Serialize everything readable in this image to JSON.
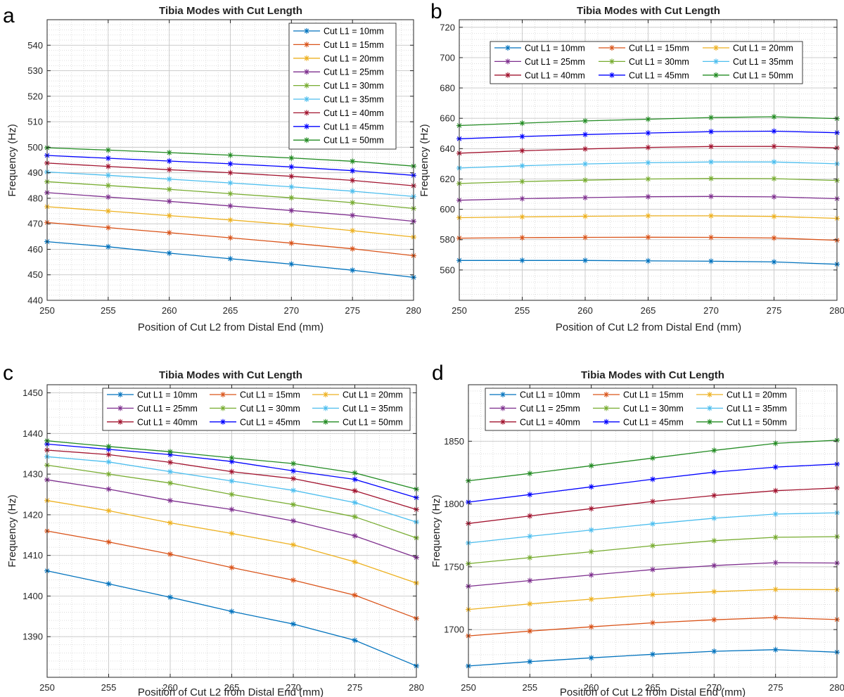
{
  "chart_data": [
    {
      "panel": "a",
      "type": "line",
      "title": "Tibia Modes with Cut Length",
      "xlabel": "Position of Cut L2 from Distal End (mm)",
      "ylabel": "Frequency (Hz)",
      "x": [
        250,
        255,
        260,
        265,
        270,
        275,
        280
      ],
      "xlim": [
        250,
        280
      ],
      "ylim": [
        440,
        550
      ],
      "xticks": [
        250,
        255,
        260,
        265,
        270,
        275,
        280
      ],
      "yticks": [
        440,
        450,
        460,
        470,
        480,
        490,
        500,
        510,
        520,
        530,
        540
      ],
      "grid": true,
      "legend": {
        "placement": "top-right",
        "columns": 1
      },
      "series": [
        {
          "name": "Cut L1 = 10mm",
          "color": "#0072BD",
          "values": [
            463,
            461,
            458.5,
            456.3,
            454.2,
            451.8,
            449
          ]
        },
        {
          "name": "Cut L1 = 15mm",
          "color": "#D95319",
          "values": [
            470.5,
            468.5,
            466.5,
            464.5,
            462.4,
            460.2,
            457.5
          ]
        },
        {
          "name": "Cut L1 = 20mm",
          "color": "#EDB120",
          "values": [
            476.7,
            475,
            473.2,
            471.5,
            469.6,
            467.3,
            464.8
          ]
        },
        {
          "name": "Cut L1 = 25mm",
          "color": "#7E2F8E",
          "values": [
            482.2,
            480.5,
            478.8,
            477,
            475.2,
            473.3,
            471
          ]
        },
        {
          "name": "Cut L1 = 30mm",
          "color": "#77AC30",
          "values": [
            486.5,
            485,
            483.5,
            481.8,
            480.2,
            478.3,
            476
          ]
        },
        {
          "name": "Cut L1 = 35mm",
          "color": "#4DBEEE",
          "values": [
            490.3,
            489,
            487.5,
            486,
            484.5,
            482.8,
            480.7
          ]
        },
        {
          "name": "Cut L1 = 40mm",
          "color": "#A2142F",
          "values": [
            493.8,
            492.5,
            491.2,
            490,
            488.6,
            487,
            484.9
          ]
        },
        {
          "name": "Cut L1 = 45mm",
          "color": "#0000FF",
          "values": [
            496.8,
            495.7,
            494.6,
            493.5,
            492.3,
            490.8,
            489
          ]
        },
        {
          "name": "Cut L1 = 50mm",
          "color": "#228B22",
          "values": [
            499.8,
            498.9,
            497.9,
            496.9,
            495.8,
            494.5,
            492.6
          ]
        }
      ]
    },
    {
      "panel": "b",
      "type": "line",
      "title": "Tibia Modes with Cut Length",
      "xlabel": "Position of Cut L2 from Distal End (mm)",
      "ylabel": "Frequency (Hz)",
      "x": [
        250,
        255,
        260,
        265,
        270,
        275,
        280
      ],
      "xlim": [
        250,
        280
      ],
      "ylim": [
        540,
        725
      ],
      "xticks": [
        250,
        255,
        260,
        265,
        270,
        275,
        280
      ],
      "yticks": [
        560,
        580,
        600,
        620,
        640,
        660,
        680,
        700,
        720
      ],
      "grid": true,
      "legend": {
        "placement": "top",
        "columns": 3
      },
      "series": [
        {
          "name": "Cut L1 = 10mm",
          "color": "#0072BD",
          "values": [
            566.3,
            566.3,
            566.3,
            566,
            565.8,
            565.3,
            563.8
          ]
        },
        {
          "name": "Cut L1 = 15mm",
          "color": "#D95319",
          "values": [
            581,
            581.3,
            581.5,
            581.6,
            581.5,
            581.1,
            579.6
          ]
        },
        {
          "name": "Cut L1 = 20mm",
          "color": "#EDB120",
          "values": [
            594.5,
            595,
            595.4,
            595.7,
            595.7,
            595.3,
            594
          ]
        },
        {
          "name": "Cut L1 = 25mm",
          "color": "#7E2F8E",
          "values": [
            606,
            607,
            607.7,
            608.3,
            608.5,
            608.2,
            607
          ]
        },
        {
          "name": "Cut L1 = 30mm",
          "color": "#77AC30",
          "values": [
            617,
            618.3,
            619.2,
            620,
            620.3,
            620.2,
            619
          ]
        },
        {
          "name": "Cut L1 = 35mm",
          "color": "#4DBEEE",
          "values": [
            627.2,
            628.7,
            629.9,
            630.7,
            631.2,
            631.2,
            630
          ]
        },
        {
          "name": "Cut L1 = 40mm",
          "color": "#A2142F",
          "values": [
            637,
            638.6,
            639.8,
            640.8,
            641.4,
            641.5,
            640.5
          ]
        },
        {
          "name": "Cut L1 = 45mm",
          "color": "#0000FF",
          "values": [
            646.5,
            648,
            649.3,
            650.3,
            651.2,
            651.5,
            650.5
          ]
        },
        {
          "name": "Cut L1 = 50mm",
          "color": "#228B22",
          "values": [
            655.2,
            656.8,
            658.3,
            659.4,
            660.5,
            661,
            659.8
          ]
        }
      ]
    },
    {
      "panel": "c",
      "type": "line",
      "title": "Tibia Modes with Cut Length",
      "xlabel": "Position of Cut L2 from Distal End (mm)",
      "ylabel": "Frequency (Hz)",
      "x": [
        250,
        255,
        260,
        265,
        270,
        275,
        280
      ],
      "xlim": [
        250,
        280
      ],
      "ylim": [
        1380,
        1452
      ],
      "xticks": [
        250,
        255,
        260,
        265,
        270,
        275,
        280
      ],
      "yticks": [
        1390,
        1400,
        1410,
        1420,
        1430,
        1440,
        1450
      ],
      "grid": true,
      "legend": {
        "placement": "top",
        "columns": 3
      },
      "series": [
        {
          "name": "Cut L1 = 10mm",
          "color": "#0072BD",
          "values": [
            1406.2,
            1403,
            1399.7,
            1396.2,
            1393.1,
            1389.1,
            1382.8
          ]
        },
        {
          "name": "Cut L1 = 15mm",
          "color": "#D95319",
          "values": [
            1416,
            1413.3,
            1410.3,
            1407,
            1403.9,
            1400.2,
            1394.5
          ]
        },
        {
          "name": "Cut L1 = 20mm",
          "color": "#EDB120",
          "values": [
            1423.5,
            1421,
            1418,
            1415.4,
            1412.6,
            1408.4,
            1403.2
          ]
        },
        {
          "name": "Cut L1 = 25mm",
          "color": "#7E2F8E",
          "values": [
            1428.6,
            1426.3,
            1423.5,
            1421.3,
            1418.5,
            1414.8,
            1409.5
          ]
        },
        {
          "name": "Cut L1 = 30mm",
          "color": "#77AC30",
          "values": [
            1432.2,
            1430,
            1427.8,
            1425,
            1422.5,
            1419.5,
            1414.3
          ]
        },
        {
          "name": "Cut L1 = 35mm",
          "color": "#4DBEEE",
          "values": [
            1434.3,
            1433,
            1430.6,
            1428.3,
            1426,
            1423,
            1418.2
          ]
        },
        {
          "name": "Cut L1 = 40mm",
          "color": "#A2142F",
          "values": [
            1435.9,
            1434.8,
            1432.9,
            1430.6,
            1428.9,
            1425.9,
            1421.3
          ]
        },
        {
          "name": "Cut L1 = 45mm",
          "color": "#0000FF",
          "values": [
            1437.4,
            1436.1,
            1434.8,
            1433.1,
            1430.8,
            1428.7,
            1424.2
          ]
        },
        {
          "name": "Cut L1 = 50mm",
          "color": "#228B22",
          "values": [
            1438.2,
            1436.8,
            1435.5,
            1434,
            1432.6,
            1430.3,
            1426.3
          ]
        }
      ]
    },
    {
      "panel": "d",
      "type": "line",
      "title": "Tibia Modes with Cut Length",
      "xlabel": "Position of Cut L2 from Distal End (mm)",
      "ylabel": "Frequency (Hz)",
      "x": [
        250,
        255,
        260,
        265,
        270,
        275,
        280
      ],
      "xlim": [
        250,
        280
      ],
      "ylim": [
        1662,
        1895
      ],
      "xticks": [
        250,
        255,
        260,
        265,
        270,
        275,
        280
      ],
      "yticks": [
        1700,
        1750,
        1800,
        1850
      ],
      "grid": true,
      "legend": {
        "placement": "top",
        "columns": 3
      },
      "series": [
        {
          "name": "Cut L1 = 10mm",
          "color": "#0072BD",
          "values": [
            1671,
            1674.5,
            1677.5,
            1680.3,
            1682.7,
            1684,
            1682
          ]
        },
        {
          "name": "Cut L1 = 15mm",
          "color": "#D95319",
          "values": [
            1695,
            1698.8,
            1702.2,
            1705.4,
            1707.8,
            1709.6,
            1708
          ]
        },
        {
          "name": "Cut L1 = 20mm",
          "color": "#EDB120",
          "values": [
            1716,
            1720.5,
            1724.2,
            1727.8,
            1730.2,
            1732,
            1731.8
          ]
        },
        {
          "name": "Cut L1 = 25mm",
          "color": "#7E2F8E",
          "values": [
            1734.5,
            1739,
            1743.5,
            1747.8,
            1751,
            1753.3,
            1753
          ]
        },
        {
          "name": "Cut L1 = 30mm",
          "color": "#77AC30",
          "values": [
            1752.5,
            1757.3,
            1762,
            1766.8,
            1770.8,
            1773.5,
            1774
          ]
        },
        {
          "name": "Cut L1 = 35mm",
          "color": "#4DBEEE",
          "values": [
            1769,
            1774.3,
            1779.3,
            1784.2,
            1788.7,
            1792,
            1793
          ]
        },
        {
          "name": "Cut L1 = 40mm",
          "color": "#A2142F",
          "values": [
            1784.5,
            1790.5,
            1796.3,
            1802,
            1806.8,
            1810.6,
            1812.8
          ]
        },
        {
          "name": "Cut L1 = 45mm",
          "color": "#0000FF",
          "values": [
            1801.5,
            1807.5,
            1813.7,
            1819.7,
            1825.4,
            1829.4,
            1831.8
          ]
        },
        {
          "name": "Cut L1 = 50mm",
          "color": "#228B22",
          "values": [
            1818.5,
            1824.3,
            1830.5,
            1836.6,
            1842.7,
            1848.3,
            1850.8
          ]
        }
      ]
    }
  ]
}
